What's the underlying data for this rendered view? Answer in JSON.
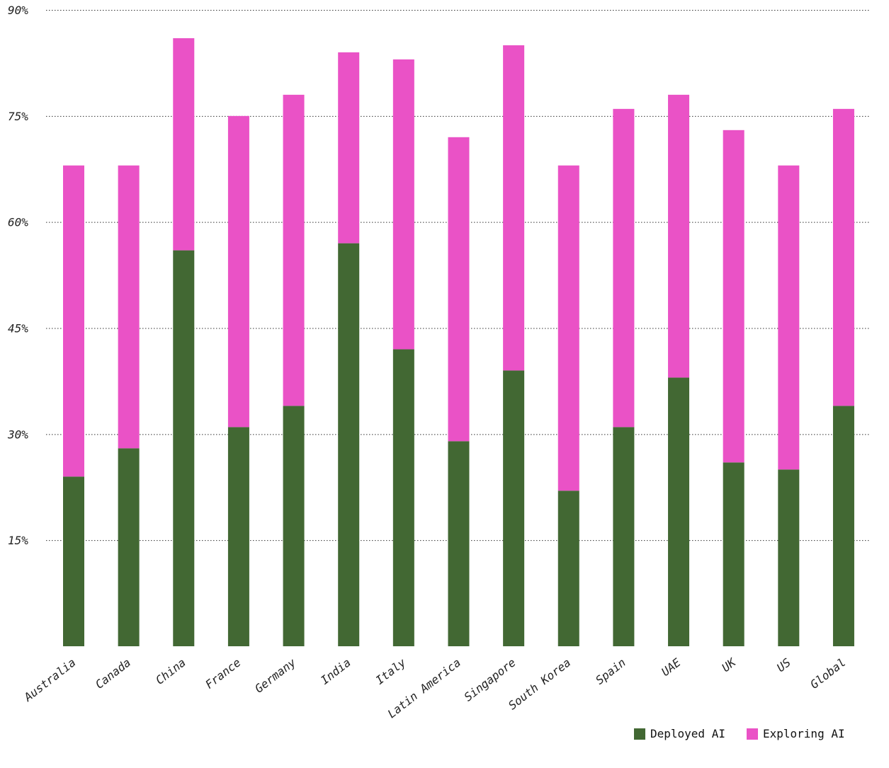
{
  "chart_data": {
    "type": "bar",
    "stacked": true,
    "title": "",
    "xlabel": "",
    "ylabel": "",
    "ylim": [
      0,
      90
    ],
    "yticks": [
      15,
      30,
      45,
      60,
      75,
      90
    ],
    "ytick_labels": [
      "15%",
      "30%",
      "45%",
      "60%",
      "75%",
      "90%"
    ],
    "grid": true,
    "legend_position": "bottom-right",
    "categories": [
      "Australia",
      "Canada",
      "China",
      "France",
      "Germany",
      "India",
      "Italy",
      "Latin America",
      "Singapore",
      "South Korea",
      "Spain",
      "UAE",
      "UK",
      "US",
      "Global"
    ],
    "series": [
      {
        "name": "Deployed AI",
        "color": "#426833",
        "values": [
          24,
          28,
          56,
          31,
          34,
          57,
          42,
          29,
          39,
          22,
          31,
          38,
          26,
          25,
          34
        ]
      },
      {
        "name": "Exploring AI",
        "color": "#ea52c6",
        "values": [
          44,
          40,
          30,
          44,
          44,
          27,
          41,
          43,
          46,
          46,
          45,
          40,
          47,
          43,
          42
        ]
      }
    ]
  }
}
